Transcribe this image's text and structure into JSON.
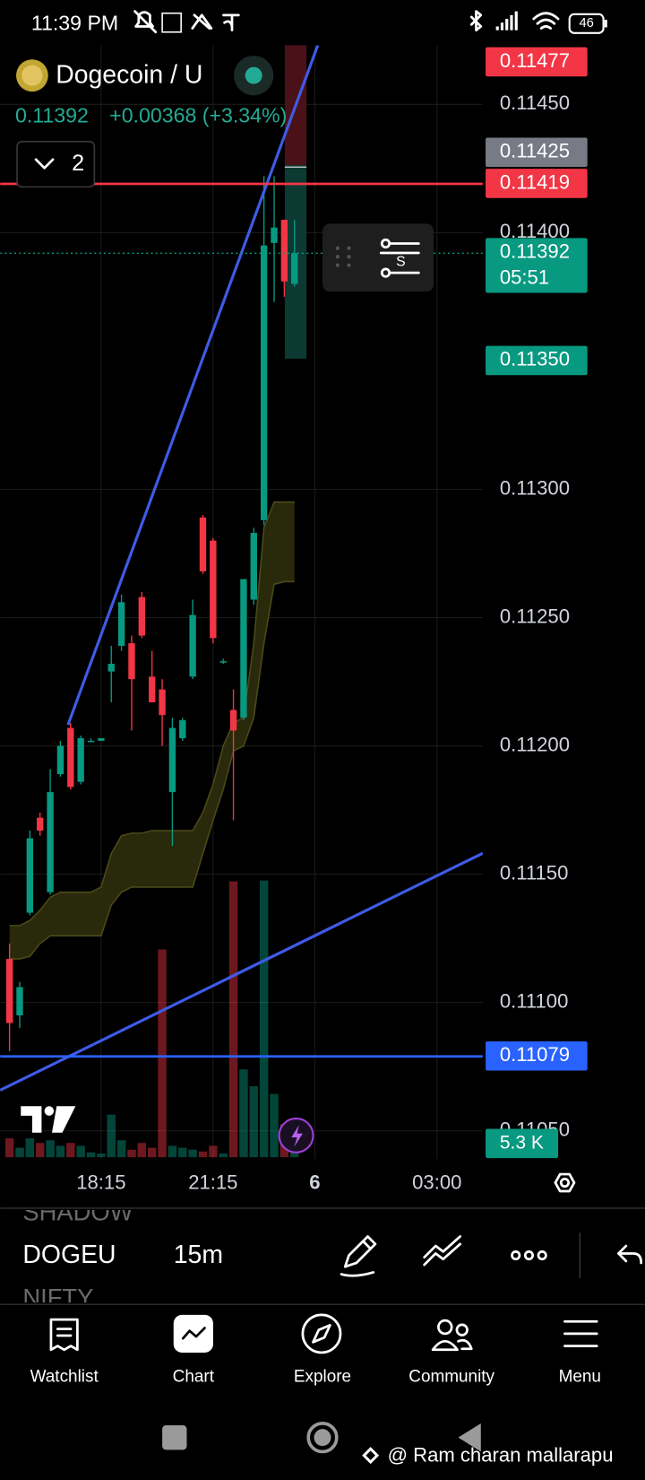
{
  "status_bar": {
    "time": "11:39 PM",
    "battery": "46"
  },
  "header": {
    "symbol": "Dogecoin / U",
    "price": "0.11392",
    "change": "+0.00368 (+3.34%)",
    "indicators_count": "2"
  },
  "widget_label": "S",
  "chart_data": {
    "type": "candlestick",
    "categories": [
      null,
      null,
      null,
      null,
      null,
      null,
      null,
      null,
      null,
      "18:15",
      null,
      null,
      null,
      null,
      null,
      null,
      null,
      null,
      null,
      null,
      "21:15",
      null,
      null,
      null,
      null,
      null,
      null,
      null,
      null,
      null,
      "6",
      null,
      null,
      null,
      null,
      null,
      null,
      null,
      null,
      null,
      null,
      null,
      "03:00",
      null,
      null,
      null,
      null
    ],
    "open": [
      0.11117,
      0.11095,
      0.11135,
      0.11172,
      0.11143,
      0.11189,
      0.11207,
      0.11186,
      0.11202,
      0.11202,
      0.11229,
      0.11239,
      0.1124,
      0.11258,
      0.11227,
      0.11222,
      0.11182,
      0.11203,
      0.11227,
      0.11289,
      0.1128,
      0.11233,
      0.11214,
      0.11211,
      0.11257,
      0.11288,
      0.11396,
      0.11405,
      0.1138,
      null,
      null,
      null,
      null,
      null,
      null,
      null,
      null,
      null,
      null,
      null,
      null,
      null,
      null,
      null,
      null,
      null,
      null
    ],
    "high": [
      0.11123,
      0.11108,
      0.11167,
      0.11174,
      0.11191,
      0.11202,
      0.11209,
      0.11204,
      0.11203,
      0.11203,
      0.11239,
      0.11259,
      0.11243,
      0.1126,
      0.11237,
      0.11226,
      0.11211,
      0.11211,
      0.11257,
      0.1129,
      0.11281,
      0.11234,
      0.11222,
      0.11265,
      0.11285,
      0.11422,
      0.11422,
      0.11405,
      0.11405,
      null,
      null,
      null,
      null,
      null,
      null,
      null,
      null,
      null,
      null,
      null,
      null,
      null,
      null,
      null,
      null,
      null,
      null
    ],
    "low": [
      0.11081,
      0.1109,
      0.11134,
      0.11165,
      0.11142,
      0.11188,
      0.11183,
      0.11185,
      0.11202,
      0.11202,
      0.11217,
      0.11237,
      0.11206,
      0.11242,
      0.11217,
      0.112,
      0.11161,
      0.11202,
      0.11226,
      0.11267,
      0.1124,
      0.11232,
      0.11171,
      0.1121,
      0.11255,
      0.11286,
      0.11373,
      0.11375,
      0.11379,
      null,
      null,
      null,
      null,
      null,
      null,
      null,
      null,
      null,
      null,
      null,
      null,
      null,
      null,
      null,
      null,
      null,
      null
    ],
    "close": [
      0.11092,
      0.11106,
      0.11164,
      0.11167,
      0.11182,
      0.112,
      0.11184,
      0.11203,
      0.11202,
      0.11203,
      0.11232,
      0.11256,
      0.11226,
      0.11243,
      0.11217,
      0.11212,
      0.11207,
      0.1121,
      0.11251,
      0.11268,
      0.11242,
      0.11233,
      0.11206,
      0.11265,
      0.11283,
      0.11395,
      0.11402,
      0.11381,
      0.11392,
      null,
      null,
      null,
      null,
      null,
      null,
      null,
      null,
      null,
      null,
      null,
      null,
      null,
      null,
      null,
      null,
      null,
      null
    ],
    "up_color": "#089981",
    "down_color": "#f23645",
    "ylim": [
      0.11039,
      0.11473
    ],
    "yticks": [
      {
        "value": 0.1145,
        "label": "0.11450"
      },
      {
        "value": 0.114,
        "label": "0.11400"
      },
      {
        "value": 0.113,
        "label": "0.11300"
      },
      {
        "value": 0.1125,
        "label": "0.11250"
      },
      {
        "value": 0.112,
        "label": "0.11200"
      },
      {
        "value": 0.1115,
        "label": "0.11150"
      },
      {
        "value": 0.111,
        "label": "0.11100"
      },
      {
        "value": 0.1105,
        "label": "0.11050"
      }
    ],
    "grid": true,
    "band": {
      "color": "#2e2e0c",
      "edge_color": "#4a4a1a",
      "upper": [
        0.1113,
        0.1113,
        0.11132,
        0.11136,
        0.11141,
        0.11143,
        0.11143,
        0.11143,
        0.11143,
        0.11145,
        0.11158,
        0.11165,
        0.11166,
        0.11166,
        0.11167,
        0.11167,
        0.11167,
        0.11167,
        0.11167,
        0.11174,
        0.11185,
        0.112,
        0.11209,
        0.11211,
        0.1124,
        0.11285,
        0.11295,
        0.11295,
        0.11295,
        null,
        null,
        null,
        null,
        null,
        null,
        null,
        null,
        null,
        null,
        null,
        null,
        null,
        null,
        null,
        null,
        null,
        null
      ],
      "lower": [
        0.11117,
        0.11117,
        0.11118,
        0.11123,
        0.11126,
        0.11126,
        0.11126,
        0.11126,
        0.11126,
        0.11126,
        0.11138,
        0.11143,
        0.11145,
        0.11145,
        0.11145,
        0.11145,
        0.11145,
        0.11145,
        0.11145,
        0.11158,
        0.11171,
        0.11183,
        0.11198,
        0.112,
        0.11211,
        0.1124,
        0.11263,
        0.11264,
        0.11264,
        null,
        null,
        null,
        null,
        null,
        null,
        null,
        null,
        null,
        null,
        null,
        null,
        null,
        null,
        null,
        null,
        null,
        null
      ]
    },
    "volume": {
      "ylim": [
        0,
        160000
      ],
      "values": [
        10600,
        5300,
        10600,
        8000,
        9500,
        6400,
        8000,
        6400,
        2700,
        2100,
        23900,
        9500,
        4200,
        8000,
        5300,
        116600,
        6400,
        5300,
        4200,
        3200,
        6400,
        2100,
        154800,
        49300,
        39800,
        155300,
        35500,
        18600,
        5300,
        null,
        null,
        null,
        null,
        null,
        null,
        null,
        null,
        null,
        null,
        null,
        null,
        null,
        null,
        null,
        null,
        null,
        null
      ],
      "value_labels": [
        null,
        null,
        null,
        null,
        null,
        null,
        null,
        null,
        null,
        null,
        null,
        null,
        null,
        null,
        null,
        null,
        null,
        null,
        null,
        null,
        null,
        null,
        null,
        null,
        null,
        null,
        null,
        null,
        "5.3 K",
        null,
        null,
        null,
        null,
        null,
        null,
        null,
        null,
        null,
        null,
        null,
        null,
        null,
        null,
        null,
        null,
        null,
        null
      ]
    },
    "price_labels": [
      {
        "value": 0.11477,
        "label": "0.11477",
        "color": "#f23645"
      },
      {
        "value": 0.11425,
        "label": "0.11425",
        "color": "#787b86"
      },
      {
        "value": 0.11419,
        "label": "0.11419",
        "color": "#f23645",
        "line": "solid"
      },
      {
        "value": 0.11392,
        "label": "0.11392",
        "color": "#089981",
        "line": "dotted",
        "countdown": "05:51"
      },
      {
        "value": 0.1135,
        "label": "0.11350",
        "color": "#089981"
      },
      {
        "value": 0.11079,
        "label": "0.11079",
        "color": "#2962ff",
        "line": "solid"
      }
    ]
  },
  "toolbar": {
    "symbols": [
      "SHADOW",
      "DOGEU",
      "NIFTY"
    ],
    "interval": "15m"
  },
  "nav": [
    "Watchlist",
    "Chart",
    "Explore",
    "Community",
    "Menu"
  ],
  "watermark": "@ Ram charan mallarapu"
}
